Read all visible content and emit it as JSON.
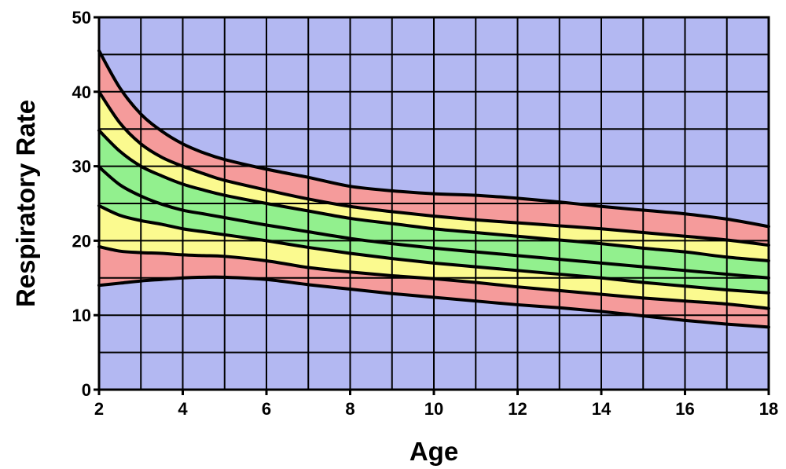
{
  "chart_data": {
    "type": "area",
    "title": "",
    "xlabel": "Age",
    "ylabel": "Respiratory Rate",
    "xlim": [
      2,
      18
    ],
    "ylim": [
      0,
      50
    ],
    "x_ticks": [
      2,
      4,
      6,
      8,
      10,
      12,
      14,
      16,
      18
    ],
    "y_ticks": [
      0,
      10,
      20,
      30,
      40,
      50
    ],
    "grid": true,
    "colors": {
      "background": "#b3b8f2",
      "outer_band": "#f59b9b",
      "middle_band": "#fbfa8f",
      "inner_band": "#92f08e",
      "lines": "#000000"
    },
    "x": [
      2,
      2.5,
      3,
      3.5,
      4,
      4.5,
      5,
      6,
      7,
      8,
      9,
      10,
      11,
      12,
      13,
      14,
      15,
      16,
      17,
      18
    ],
    "series": [
      {
        "values": [
          45.5,
          40.5,
          37.0,
          34.7,
          33.0,
          31.8,
          30.9,
          29.6,
          28.5,
          27.3,
          26.7,
          26.3,
          26.1,
          25.7,
          25.2,
          24.6,
          24.1,
          23.6,
          22.9,
          21.9
        ]
      },
      {
        "values": [
          40.0,
          35.8,
          33.0,
          31.2,
          30.0,
          29.0,
          28.1,
          26.8,
          25.6,
          24.6,
          23.9,
          23.3,
          22.8,
          22.4,
          22.0,
          21.6,
          21.1,
          20.6,
          20.1,
          19.4
        ]
      },
      {
        "values": [
          34.8,
          32.0,
          30.0,
          28.7,
          27.6,
          26.8,
          26.1,
          25.0,
          24.0,
          23.0,
          22.3,
          21.6,
          21.1,
          20.6,
          20.1,
          19.6,
          19.0,
          18.5,
          17.8,
          17.3
        ]
      },
      {
        "values": [
          29.9,
          27.5,
          26.0,
          24.9,
          24.1,
          23.6,
          23.1,
          22.1,
          21.2,
          20.3,
          19.6,
          19.0,
          18.5,
          18.0,
          17.5,
          17.0,
          16.5,
          16.0,
          15.5,
          15.0
        ]
      },
      {
        "values": [
          24.7,
          23.4,
          22.7,
          22.2,
          21.6,
          21.2,
          20.8,
          20.0,
          19.1,
          18.3,
          17.6,
          17.0,
          16.5,
          16.0,
          15.5,
          15.0,
          14.4,
          13.9,
          13.4,
          13.0
        ]
      },
      {
        "values": [
          19.2,
          18.6,
          18.4,
          18.3,
          18.1,
          18.0,
          17.9,
          17.3,
          16.4,
          15.8,
          15.3,
          14.9,
          14.4,
          13.8,
          13.3,
          12.8,
          12.3,
          11.9,
          11.5,
          10.9
        ]
      },
      {
        "values": [
          14.0,
          14.3,
          14.6,
          14.8,
          15.0,
          15.1,
          15.1,
          14.8,
          14.1,
          13.5,
          12.9,
          12.4,
          11.9,
          11.4,
          11.0,
          10.5,
          9.9,
          9.3,
          8.8,
          8.4
        ]
      }
    ]
  }
}
